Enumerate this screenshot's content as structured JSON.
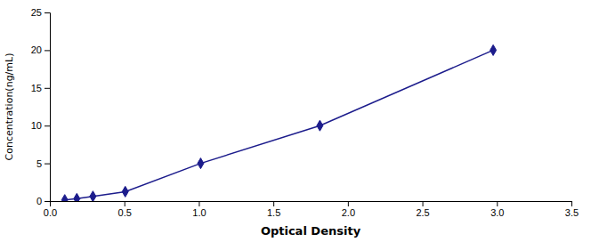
{
  "chart_data": {
    "type": "line",
    "xlabel": "Optical Density",
    "ylabel": "Concentration(ng/mL)",
    "x": [
      0.1,
      0.181,
      0.289,
      0.506,
      1.012,
      1.812,
      2.975
    ],
    "values": [
      0.156,
      0.312,
      0.625,
      1.25,
      5.0,
      10.0,
      20.0
    ],
    "color": "#1C1C8C",
    "marker": "diamond",
    "xlim": [
      0,
      3.5
    ],
    "ylim": [
      0,
      25
    ],
    "xticks": [
      {
        "value": 0.0,
        "label": "0.0"
      },
      0.5,
      {
        "value": 1.0,
        "label": "1.0"
      },
      1.5,
      {
        "value": 2.0,
        "label": "2.0"
      },
      2.5,
      {
        "value": 3.0,
        "label": "3.0"
      },
      3.5
    ],
    "yticks": [
      0,
      5,
      10,
      15,
      20,
      25
    ],
    "grid": false
  }
}
